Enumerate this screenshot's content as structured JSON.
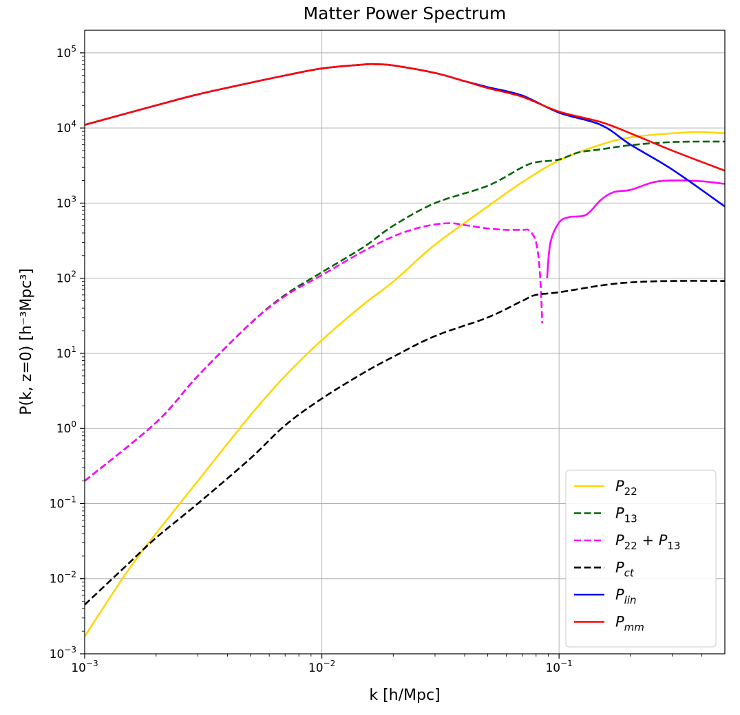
{
  "chart_data": {
    "type": "line",
    "title": "Matter Power Spectrum",
    "xlabel": "k [h/Mpc]",
    "ylabel": "P(k, z=0) [h⁻³Mpc³]",
    "xscale": "log",
    "yscale": "log",
    "xlim": [
      0.001,
      0.5
    ],
    "ylim": [
      0.001,
      200000
    ],
    "grid": true,
    "legend_position": "lower-right",
    "x_ticks": [
      {
        "value": 0.001,
        "base": "10",
        "exp": "−3"
      },
      {
        "value": 0.01,
        "base": "10",
        "exp": "−2"
      },
      {
        "value": 0.1,
        "base": "10",
        "exp": "−1"
      }
    ],
    "y_ticks": [
      {
        "value": 0.001,
        "base": "10",
        "exp": "−3"
      },
      {
        "value": 0.01,
        "base": "10",
        "exp": "−2"
      },
      {
        "value": 0.1,
        "base": "10",
        "exp": "−1"
      },
      {
        "value": 1,
        "base": "10",
        "exp": "0"
      },
      {
        "value": 10,
        "base": "10",
        "exp": "1"
      },
      {
        "value": 100,
        "base": "10",
        "exp": "2"
      },
      {
        "value": 1000,
        "base": "10",
        "exp": "3"
      },
      {
        "value": 10000,
        "base": "10",
        "exp": "4"
      },
      {
        "value": 100000,
        "base": "10",
        "exp": "5"
      }
    ],
    "series": [
      {
        "key": "p22",
        "label_main": "P",
        "label_sub": "22",
        "label_extra": "",
        "label_extra_sub": "",
        "color": "#FFD700",
        "dash": false,
        "points": [
          [
            0.001,
            0.0017
          ],
          [
            0.0015,
            0.012
          ],
          [
            0.002,
            0.04
          ],
          [
            0.003,
            0.2
          ],
          [
            0.005,
            1.5
          ],
          [
            0.007,
            5
          ],
          [
            0.01,
            15
          ],
          [
            0.015,
            45
          ],
          [
            0.02,
            90
          ],
          [
            0.03,
            280
          ],
          [
            0.05,
            900
          ],
          [
            0.07,
            1900
          ],
          [
            0.1,
            3700
          ],
          [
            0.15,
            6000
          ],
          [
            0.2,
            7500
          ],
          [
            0.3,
            8500
          ],
          [
            0.4,
            8800
          ],
          [
            0.5,
            8500
          ]
        ]
      },
      {
        "key": "p13",
        "label_main": "P",
        "label_sub": "13",
        "label_extra": "",
        "label_extra_sub": "",
        "color": "#006400",
        "dash": true,
        "points": [
          [
            0.001,
            0.2
          ],
          [
            0.002,
            1.2
          ],
          [
            0.003,
            5
          ],
          [
            0.005,
            25
          ],
          [
            0.007,
            60
          ],
          [
            0.01,
            120
          ],
          [
            0.015,
            260
          ],
          [
            0.02,
            500
          ],
          [
            0.03,
            1000
          ],
          [
            0.05,
            1700
          ],
          [
            0.07,
            3000
          ],
          [
            0.08,
            3500
          ],
          [
            0.1,
            3800
          ],
          [
            0.12,
            4700
          ],
          [
            0.15,
            5200
          ],
          [
            0.2,
            5900
          ],
          [
            0.3,
            6500
          ],
          [
            0.5,
            6600
          ]
        ]
      },
      {
        "key": "p22p13",
        "label_main": "P",
        "label_sub": "22",
        "label_extra": " + P",
        "label_extra_sub": "13",
        "color": "#FF00FF",
        "dash": true,
        "points": [
          [
            0.001,
            0.2
          ],
          [
            0.002,
            1.2
          ],
          [
            0.003,
            5
          ],
          [
            0.005,
            25
          ],
          [
            0.007,
            58
          ],
          [
            0.01,
            110
          ],
          [
            0.015,
            230
          ],
          [
            0.02,
            360
          ],
          [
            0.025,
            460
          ],
          [
            0.03,
            520
          ],
          [
            0.035,
            540
          ],
          [
            0.04,
            510
          ],
          [
            0.05,
            460
          ],
          [
            0.06,
            440
          ],
          [
            0.07,
            440
          ],
          [
            0.075,
            430
          ],
          [
            0.08,
            300
          ],
          [
            0.083,
            120
          ],
          [
            0.085,
            25
          ]
        ]
      },
      {
        "key": "p22p13b",
        "label_main": "",
        "label_sub": "",
        "label_extra": "",
        "label_extra_sub": "",
        "color": "#FF00FF",
        "dash": false,
        "points": [
          [
            0.089,
            100
          ],
          [
            0.092,
            300
          ],
          [
            0.1,
            550
          ],
          [
            0.11,
            650
          ],
          [
            0.13,
            700
          ],
          [
            0.15,
            1100
          ],
          [
            0.17,
            1400
          ],
          [
            0.2,
            1500
          ],
          [
            0.25,
            1900
          ],
          [
            0.3,
            2000
          ],
          [
            0.4,
            1950
          ],
          [
            0.5,
            1800
          ]
        ]
      },
      {
        "key": "pct",
        "label_main": "P",
        "label_sub": "ct",
        "label_extra": "",
        "label_extra_sub": "",
        "color": "#000000",
        "dash": true,
        "points": [
          [
            0.001,
            0.0045
          ],
          [
            0.0015,
            0.015
          ],
          [
            0.002,
            0.035
          ],
          [
            0.003,
            0.1
          ],
          [
            0.005,
            0.4
          ],
          [
            0.007,
            1.1
          ],
          [
            0.01,
            2.5
          ],
          [
            0.015,
            5.5
          ],
          [
            0.02,
            9
          ],
          [
            0.03,
            17
          ],
          [
            0.05,
            30
          ],
          [
            0.07,
            50
          ],
          [
            0.08,
            60
          ],
          [
            0.1,
            65
          ],
          [
            0.15,
            80
          ],
          [
            0.2,
            88
          ],
          [
            0.3,
            92
          ],
          [
            0.5,
            92
          ]
        ]
      },
      {
        "key": "plin",
        "label_main": "P",
        "label_sub": "lin",
        "label_extra": "",
        "label_extra_sub": "",
        "color": "#0000FF",
        "dash": false,
        "points": [
          [
            0.001,
            11000
          ],
          [
            0.002,
            20000
          ],
          [
            0.003,
            28000
          ],
          [
            0.005,
            40000
          ],
          [
            0.007,
            50000
          ],
          [
            0.01,
            62000
          ],
          [
            0.015,
            70000
          ],
          [
            0.017,
            70500
          ],
          [
            0.02,
            68000
          ],
          [
            0.03,
            54000
          ],
          [
            0.04,
            42000
          ],
          [
            0.05,
            35000
          ],
          [
            0.07,
            27000
          ],
          [
            0.1,
            16000
          ],
          [
            0.15,
            11000
          ],
          [
            0.2,
            6000
          ],
          [
            0.3,
            2800
          ],
          [
            0.5,
            900
          ]
        ]
      },
      {
        "key": "pmm",
        "label_main": "P",
        "label_sub": "mm",
        "label_extra": "",
        "label_extra_sub": "",
        "color": "#FF0000",
        "dash": false,
        "points": [
          [
            0.001,
            11000
          ],
          [
            0.002,
            20000
          ],
          [
            0.003,
            28000
          ],
          [
            0.005,
            40000
          ],
          [
            0.007,
            50000
          ],
          [
            0.01,
            62000
          ],
          [
            0.015,
            70000
          ],
          [
            0.017,
            70500
          ],
          [
            0.02,
            68000
          ],
          [
            0.03,
            54000
          ],
          [
            0.04,
            42000
          ],
          [
            0.05,
            34000
          ],
          [
            0.07,
            26000
          ],
          [
            0.1,
            16500
          ],
          [
            0.15,
            12000
          ],
          [
            0.2,
            8500
          ],
          [
            0.3,
            5000
          ],
          [
            0.5,
            2700
          ]
        ]
      }
    ],
    "legend_order": [
      "p22",
      "p13",
      "p22p13",
      "pct",
      "plin",
      "pmm"
    ]
  }
}
